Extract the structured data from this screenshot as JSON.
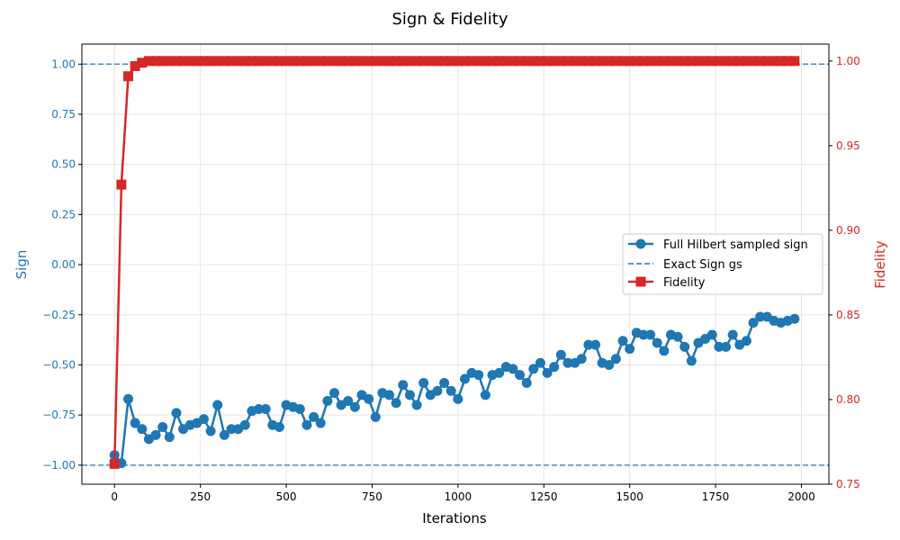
{
  "chart_data": {
    "type": "line",
    "title": "Sign & Fidelity",
    "xlabel": "Iterations",
    "ylabel_left": "Sign",
    "ylabel_right": "Fidelity",
    "xlim": [
      -95,
      2080
    ],
    "ylim_left": [
      -1.095,
      1.1
    ],
    "ylim_right": [
      0.75,
      1.01
    ],
    "xticks": [
      0,
      250,
      500,
      750,
      1000,
      1250,
      1500,
      1750,
      2000
    ],
    "xtick_labels": [
      "0",
      "250",
      "500",
      "750",
      "1000",
      "1250",
      "1500",
      "1750",
      "2000"
    ],
    "yticks_left": [
      -1.0,
      -0.75,
      -0.5,
      -0.25,
      0.0,
      0.25,
      0.5,
      0.75,
      1.0
    ],
    "ytick_labels_left": [
      "−1.00",
      "−0.75",
      "−0.50",
      "−0.25",
      "0.00",
      "0.25",
      "0.50",
      "0.75",
      "1.00"
    ],
    "yticks_right": [
      0.75,
      0.8,
      0.85,
      0.9,
      0.95,
      1.0
    ],
    "ytick_labels_right": [
      "0.75",
      "0.80",
      "0.85",
      "0.90",
      "0.95",
      "1.00"
    ],
    "grid": true,
    "legend_position": "center-right",
    "colors": {
      "sign": "#1f77b4",
      "exact": "#1f77b4",
      "fidelity": "#d62728",
      "grid": "#e5e5e5",
      "axis": "#000000"
    },
    "series": [
      {
        "name": "Full Hilbert sampled sign",
        "axis": "left",
        "style": "line-circle",
        "x": [
          0,
          20,
          40,
          60,
          80,
          100,
          120,
          140,
          160,
          180,
          200,
          220,
          240,
          260,
          280,
          300,
          320,
          340,
          360,
          380,
          400,
          420,
          440,
          460,
          480,
          500,
          520,
          540,
          560,
          580,
          600,
          620,
          640,
          660,
          680,
          700,
          720,
          740,
          760,
          780,
          800,
          820,
          840,
          860,
          880,
          900,
          920,
          940,
          960,
          980,
          1000,
          1020,
          1040,
          1060,
          1080,
          1100,
          1120,
          1140,
          1160,
          1180,
          1200,
          1220,
          1240,
          1260,
          1280,
          1300,
          1320,
          1340,
          1360,
          1380,
          1400,
          1420,
          1440,
          1460,
          1480,
          1500,
          1520,
          1540,
          1560,
          1580,
          1600,
          1620,
          1640,
          1660,
          1680,
          1700,
          1720,
          1740,
          1760,
          1780,
          1800,
          1820,
          1840,
          1860,
          1880,
          1900,
          1920,
          1940,
          1960,
          1980
        ],
        "y": [
          -0.95,
          -0.99,
          -0.67,
          -0.79,
          -0.82,
          -0.87,
          -0.85,
          -0.81,
          -0.86,
          -0.74,
          -0.82,
          -0.8,
          -0.79,
          -0.77,
          -0.83,
          -0.7,
          -0.85,
          -0.82,
          -0.82,
          -0.8,
          -0.73,
          -0.72,
          -0.72,
          -0.8,
          -0.81,
          -0.7,
          -0.71,
          -0.72,
          -0.8,
          -0.76,
          -0.79,
          -0.68,
          -0.64,
          -0.7,
          -0.68,
          -0.71,
          -0.65,
          -0.67,
          -0.76,
          -0.64,
          -0.65,
          -0.69,
          -0.6,
          -0.65,
          -0.7,
          -0.59,
          -0.65,
          -0.63,
          -0.59,
          -0.63,
          -0.67,
          -0.57,
          -0.54,
          -0.55,
          -0.65,
          -0.55,
          -0.54,
          -0.51,
          -0.52,
          -0.55,
          -0.59,
          -0.52,
          -0.49,
          -0.54,
          -0.51,
          -0.45,
          -0.49,
          -0.49,
          -0.47,
          -0.4,
          -0.4,
          -0.49,
          -0.5,
          -0.47,
          -0.38,
          -0.42,
          -0.34,
          -0.35,
          -0.35,
          -0.39,
          -0.43,
          -0.35,
          -0.36,
          -0.41,
          -0.48,
          -0.39,
          -0.37,
          -0.35,
          -0.41,
          -0.41,
          -0.35,
          -0.4,
          -0.38,
          -0.29,
          -0.26,
          -0.26,
          -0.28,
          -0.29,
          -0.28,
          -0.27
        ]
      },
      {
        "name": "Exact Sign gs",
        "axis": "left",
        "style": "dashed-hline",
        "y_values": [
          1.0,
          -1.0
        ]
      },
      {
        "name": "Fidelity",
        "axis": "right",
        "style": "line-square",
        "x": [
          0,
          20,
          40,
          60,
          80,
          100,
          120,
          140,
          160,
          180,
          200,
          220,
          240,
          260,
          280,
          300,
          320,
          340,
          360,
          380,
          400,
          420,
          440,
          460,
          480,
          500,
          520,
          540,
          560,
          580,
          600,
          620,
          640,
          660,
          680,
          700,
          720,
          740,
          760,
          780,
          800,
          820,
          840,
          860,
          880,
          900,
          920,
          940,
          960,
          980,
          1000,
          1020,
          1040,
          1060,
          1080,
          1100,
          1120,
          1140,
          1160,
          1180,
          1200,
          1220,
          1240,
          1260,
          1280,
          1300,
          1320,
          1340,
          1360,
          1380,
          1400,
          1420,
          1440,
          1460,
          1480,
          1500,
          1520,
          1540,
          1560,
          1580,
          1600,
          1620,
          1640,
          1660,
          1680,
          1700,
          1720,
          1740,
          1760,
          1780,
          1800,
          1820,
          1840,
          1860,
          1880,
          1900,
          1920,
          1940,
          1960,
          1980
        ],
        "y": [
          0.762,
          0.927,
          0.991,
          0.997,
          0.999,
          1.0,
          1.0,
          1.0,
          1.0,
          1.0,
          1.0,
          1.0,
          1.0,
          1.0,
          1.0,
          1.0,
          1.0,
          1.0,
          1.0,
          1.0,
          1.0,
          1.0,
          1.0,
          1.0,
          1.0,
          1.0,
          1.0,
          1.0,
          1.0,
          1.0,
          1.0,
          1.0,
          1.0,
          1.0,
          1.0,
          1.0,
          1.0,
          1.0,
          1.0,
          1.0,
          1.0,
          1.0,
          1.0,
          1.0,
          1.0,
          1.0,
          1.0,
          1.0,
          1.0,
          1.0,
          1.0,
          1.0,
          1.0,
          1.0,
          1.0,
          1.0,
          1.0,
          1.0,
          1.0,
          1.0,
          1.0,
          1.0,
          1.0,
          1.0,
          1.0,
          1.0,
          1.0,
          1.0,
          1.0,
          1.0,
          1.0,
          1.0,
          1.0,
          1.0,
          1.0,
          1.0,
          1.0,
          1.0,
          1.0,
          1.0,
          1.0,
          1.0,
          1.0,
          1.0,
          1.0,
          1.0,
          1.0,
          1.0,
          1.0,
          1.0,
          1.0,
          1.0,
          1.0,
          1.0,
          1.0,
          1.0,
          1.0,
          1.0,
          1.0,
          1.0
        ]
      }
    ],
    "legend": [
      {
        "label": "Full Hilbert sampled sign"
      },
      {
        "label": "Exact Sign gs"
      },
      {
        "label": "Fidelity"
      }
    ]
  }
}
